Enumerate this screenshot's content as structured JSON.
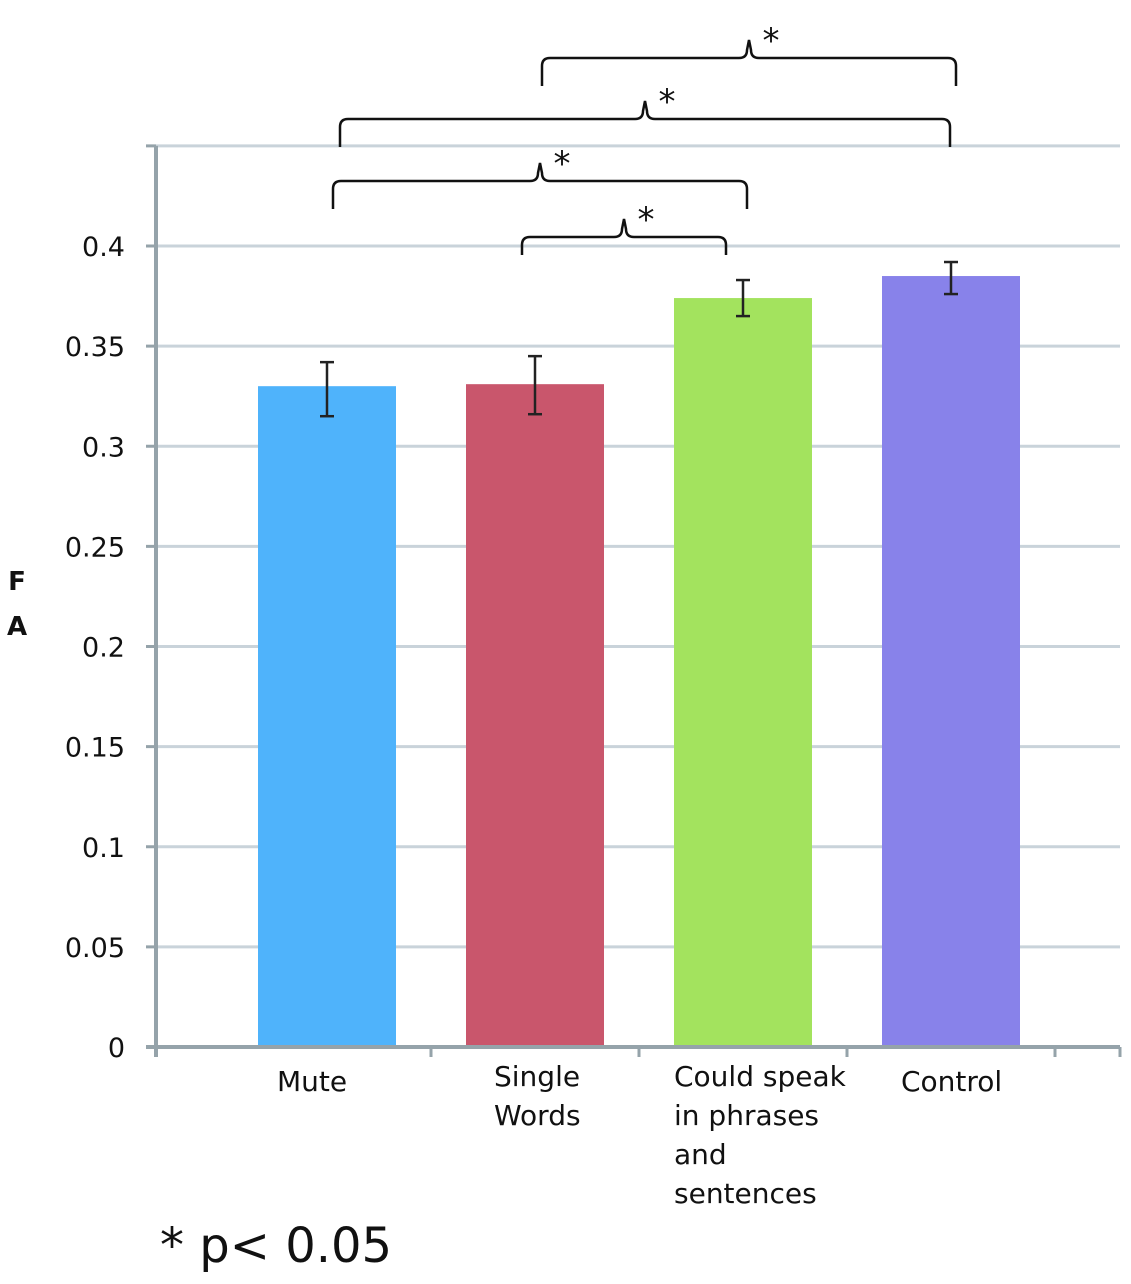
{
  "chart_data": {
    "type": "bar",
    "title": "",
    "xlabel": "",
    "ylabel": "F A",
    "ylabel_letters": [
      "F",
      "A"
    ],
    "ylim": [
      0,
      0.45
    ],
    "yticks": [
      {
        "value": 0,
        "label": "0"
      },
      {
        "value": 0.05,
        "label": "0.05"
      },
      {
        "value": 0.1,
        "label": "0.1"
      },
      {
        "value": 0.15,
        "label": "0.15"
      },
      {
        "value": 0.2,
        "label": "0.2"
      },
      {
        "value": 0.25,
        "label": "0.25"
      },
      {
        "value": 0.3,
        "label": "0.3"
      },
      {
        "value": 0.35,
        "label": "0.35"
      },
      {
        "value": 0.4,
        "label": "0.4"
      }
    ],
    "grid": true,
    "categories": [
      {
        "label": "Mute",
        "lines": [
          "Mute"
        ]
      },
      {
        "label": "Single Words",
        "lines": [
          "Single",
          "Words"
        ]
      },
      {
        "label": "Could speak in phrases and sentences",
        "lines": [
          "Could speak",
          "in phrases",
          "and",
          "sentences"
        ]
      },
      {
        "label": "Control",
        "lines": [
          "Control"
        ]
      }
    ],
    "values": [
      0.33,
      0.331,
      0.374,
      0.385
    ],
    "error_low": [
      0.315,
      0.316,
      0.365,
      0.376
    ],
    "error_high": [
      0.342,
      0.345,
      0.383,
      0.392
    ],
    "colors": [
      "#4fb3fb",
      "#c9566c",
      "#a3e35e",
      "#8882ea"
    ],
    "significance": [
      {
        "from": 1,
        "to": 2,
        "label": "*"
      },
      {
        "from": 0,
        "to": 2,
        "label": "*"
      },
      {
        "from": 0,
        "to": 3,
        "label": "*"
      },
      {
        "from": 1,
        "to": 3,
        "label": "*"
      }
    ]
  },
  "footnote": "* p< 0.05",
  "colors": {
    "axis": "#95a3aa",
    "grid": "#c9d3da",
    "text": "#111111",
    "error_bar": "#222222"
  }
}
